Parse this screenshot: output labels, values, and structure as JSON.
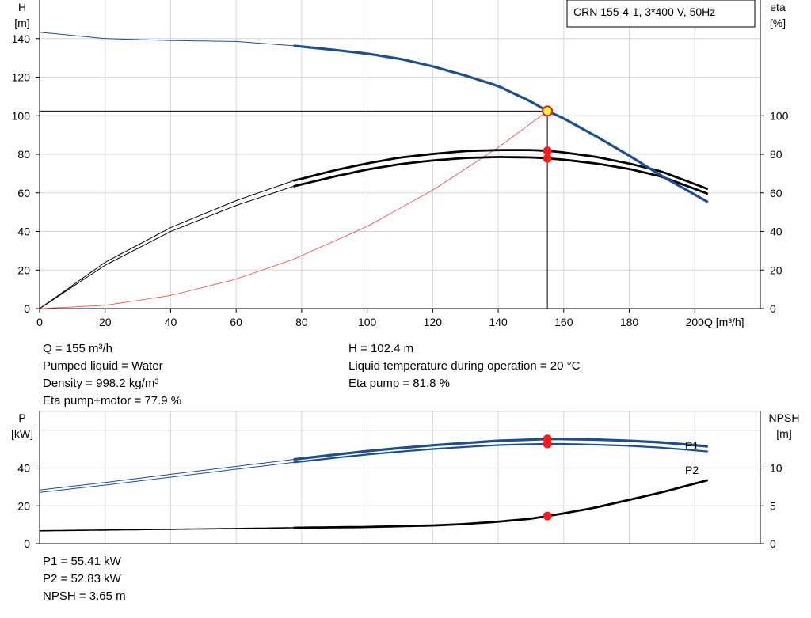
{
  "chart_data": [
    {
      "type": "line",
      "title": "CRN 155-4-1, 3*400 V, 50Hz",
      "xlabel": "Q [m³/h]",
      "ylabel": [
        "H",
        "[m]"
      ],
      "y2label": [
        "eta",
        "[%]"
      ],
      "xlim": [
        0,
        220
      ],
      "ylim": [
        0,
        160
      ],
      "y2lim": [
        0,
        160
      ],
      "grid": true,
      "xticks": [
        0,
        20,
        40,
        60,
        80,
        100,
        120,
        140,
        160,
        180,
        200
      ],
      "yticks": [
        0,
        20,
        40,
        60,
        80,
        100,
        120,
        140
      ],
      "y2ticks": [
        0,
        20,
        40,
        60,
        80,
        100
      ],
      "duty_point": {
        "q": 155,
        "h": 102.4,
        "eta_pump": 81.8,
        "eta_total": 77.9
      },
      "series": [
        {
          "role": "head",
          "color": "#1f4e8c",
          "x": [
            0,
            20,
            40,
            60,
            77.5,
            90,
            100,
            110,
            120,
            130,
            140,
            150,
            155,
            160,
            170,
            180,
            190,
            204
          ],
          "y": [
            143.3,
            140,
            139,
            138.5,
            136.3,
            134.1,
            132.2,
            129.5,
            125.6,
            120.8,
            115.4,
            107.3,
            102.4,
            98.6,
            89.2,
            79.3,
            68.7,
            55.2
          ]
        },
        {
          "role": "eta-pump",
          "color": "#000000",
          "x": [
            0,
            20,
            40,
            60,
            77.5,
            90,
            100,
            110,
            120,
            130,
            140,
            150,
            155,
            160,
            170,
            180,
            190,
            204
          ],
          "y": [
            0,
            24,
            42,
            56,
            66.3,
            71.7,
            75.3,
            78.3,
            80.2,
            81.7,
            82.2,
            82.2,
            81.8,
            81,
            78.6,
            75.2,
            71,
            62
          ]
        },
        {
          "role": "eta-total",
          "color": "#000000",
          "x": [
            0,
            20,
            40,
            60,
            77.5,
            90,
            100,
            110,
            120,
            130,
            140,
            150,
            155,
            160,
            170,
            180,
            190,
            204
          ],
          "y": [
            0,
            22.5,
            40,
            53.5,
            63.4,
            68.5,
            72.1,
            74.9,
            76.8,
            78.1,
            78.6,
            78.4,
            77.9,
            77.2,
            75.2,
            72.4,
            68.4,
            59.5
          ]
        },
        {
          "role": "system-curve",
          "color": "#ff4444",
          "x": [
            0,
            20,
            40,
            60,
            77.5,
            100,
            120,
            140,
            155
          ],
          "y": [
            0,
            1.7,
            6.8,
            15.3,
            25.6,
            42.6,
            61.4,
            83.6,
            102.4
          ]
        }
      ]
    },
    {
      "type": "line",
      "ylabel": [
        "P",
        "[kW]"
      ],
      "y2label": [
        "NPSH",
        "[m]"
      ],
      "xlim": [
        0,
        220
      ],
      "ylim": [
        0,
        70
      ],
      "y2lim": [
        0,
        17.5
      ],
      "grid": true,
      "yticks": [
        0,
        20,
        40
      ],
      "y2ticks": [
        0,
        5,
        10
      ],
      "duty_point": {
        "q": 155,
        "p1": 55.41,
        "p2": 52.83,
        "npsh": 3.65
      },
      "series": [
        {
          "name": "P1",
          "color": "#1f4e8c",
          "x": [
            0,
            20,
            40,
            60,
            77.5,
            90,
            100,
            110,
            120,
            130,
            140,
            150,
            155,
            160,
            170,
            180,
            190,
            204
          ],
          "y": [
            28.4,
            32.4,
            36.7,
            40.9,
            44.6,
            47.1,
            49,
            50.6,
            52.1,
            53.3,
            54.5,
            55.1,
            55.41,
            55.4,
            55.1,
            54.5,
            53.6,
            51.5
          ]
        },
        {
          "name": "P2",
          "color": "#1f4e8c",
          "x": [
            0,
            20,
            40,
            60,
            77.5,
            90,
            100,
            110,
            120,
            130,
            140,
            150,
            155,
            160,
            170,
            180,
            190,
            204
          ],
          "y": [
            27.1,
            31,
            35.2,
            39.4,
            43,
            45.4,
            47.2,
            48.7,
            50.1,
            51.2,
            52.2,
            52.7,
            52.83,
            52.8,
            52.4,
            51.8,
            50.8,
            48.8
          ]
        },
        {
          "role": "npsh",
          "color": "#000000",
          "x": [
            0,
            20,
            40,
            60,
            77.5,
            100,
            120,
            130,
            140,
            150,
            155,
            160,
            170,
            180,
            190,
            204
          ],
          "y": [
            1.7,
            1.8,
            1.9,
            2,
            2.1,
            2.2,
            2.4,
            2.6,
            2.9,
            3.3,
            3.65,
            4,
            4.8,
            5.8,
            6.8,
            8.4
          ]
        }
      ]
    }
  ],
  "info_top_left": [
    "Q = 155 m³/h",
    "Pumped liquid = Water",
    "Density = 998.2 kg/m³",
    "Eta pump+motor = 77.9 %"
  ],
  "info_top_right": [
    "H = 102.4 m",
    "Liquid temperature during operation = 20 °C",
    "Eta pump = 81.8 %"
  ],
  "info_bottom": [
    "P1 = 55.41 kW",
    "P2 = 52.83 kW",
    "NPSH = 3.65 m"
  ]
}
